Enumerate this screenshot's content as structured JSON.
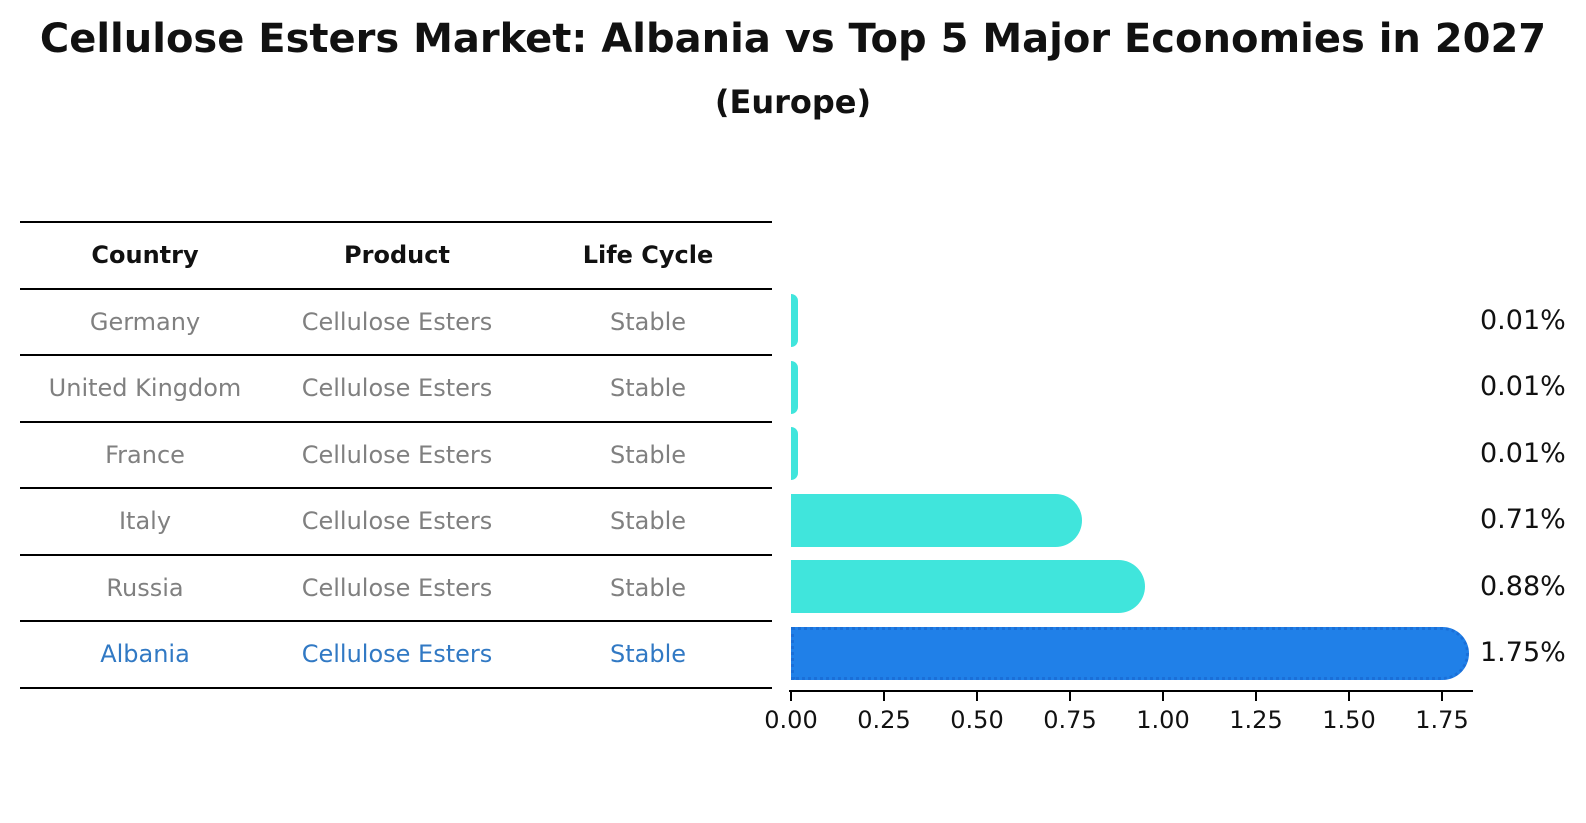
{
  "title": "Cellulose Esters Market: Albania vs Top 5 Major Economies in 2027",
  "subtitle": "(Europe)",
  "table": {
    "headers": [
      "Country",
      "Product",
      "Life Cycle"
    ],
    "rows": [
      {
        "country": "Germany",
        "product": "Cellulose Esters",
        "life_cycle": "Stable",
        "highlight": false
      },
      {
        "country": "United Kingdom",
        "product": "Cellulose Esters",
        "life_cycle": "Stable",
        "highlight": false
      },
      {
        "country": "France",
        "product": "Cellulose Esters",
        "life_cycle": "Stable",
        "highlight": false
      },
      {
        "country": "Italy",
        "product": "Cellulose Esters",
        "life_cycle": "Stable",
        "highlight": false
      },
      {
        "country": "Russia",
        "product": "Cellulose Esters",
        "life_cycle": "Stable",
        "highlight": false
      },
      {
        "country": "Albania",
        "product": "Cellulose Esters",
        "life_cycle": "Stable",
        "highlight": true
      }
    ]
  },
  "chart_data": {
    "type": "bar",
    "orientation": "horizontal",
    "title": "Cellulose Esters Market: Albania vs Top 5 Major Economies in 2027",
    "subtitle": "(Europe)",
    "categories": [
      "Germany",
      "United Kingdom",
      "France",
      "Italy",
      "Russia",
      "Albania"
    ],
    "values": [
      0.01,
      0.01,
      0.01,
      0.71,
      0.88,
      1.75
    ],
    "value_labels": [
      "0.01%",
      "0.01%",
      "0.01%",
      "0.71%",
      "0.88%",
      "1.75%"
    ],
    "x_ticks": [
      0.0,
      0.25,
      0.5,
      0.75,
      1.0,
      1.25,
      1.5,
      1.75
    ],
    "x_tick_labels": [
      "0.00",
      "0.25",
      "0.50",
      "0.75",
      "1.00",
      "1.25",
      "1.50",
      "1.75"
    ],
    "xlim": [
      0,
      1.83
    ],
    "grid": false,
    "legend": false,
    "unit": "%"
  },
  "colors": {
    "bar": "#40e5dc",
    "highlight_bar": "#2080e8",
    "highlight_border": "#1a6fd8",
    "highlight_text": "#3179c4",
    "table_text": "#808080",
    "heading_text": "#111111"
  }
}
